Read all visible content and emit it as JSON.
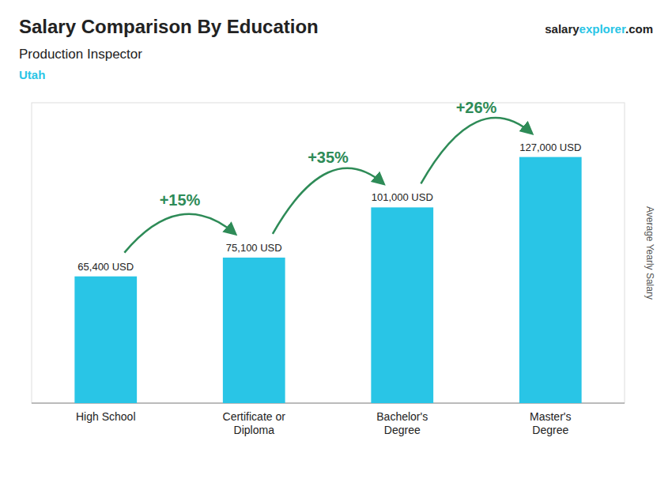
{
  "chart_data": {
    "type": "bar",
    "title": "Salary Comparison By Education",
    "subtitle": "Production Inspector",
    "location": "Utah",
    "branding": [
      "salary",
      "explorer",
      ".com"
    ],
    "y_label": "Average Yearly Salary",
    "categories": [
      "High School",
      "Certificate or\nDiploma",
      "Bachelor's\nDegree",
      "Master's\nDegree"
    ],
    "values": [
      65400,
      75100,
      101000,
      127000
    ],
    "value_labels": [
      "65,400 USD",
      "75,100 USD",
      "101,000 USD",
      "127,000 USD"
    ],
    "annotations": [
      "+15%",
      "+35%",
      "+26%"
    ],
    "color": "#29c5e6",
    "ylim": [
      0,
      155000
    ],
    "yticks": [],
    "tick_labels": "x",
    "data_labels": true,
    "grid": false
  }
}
